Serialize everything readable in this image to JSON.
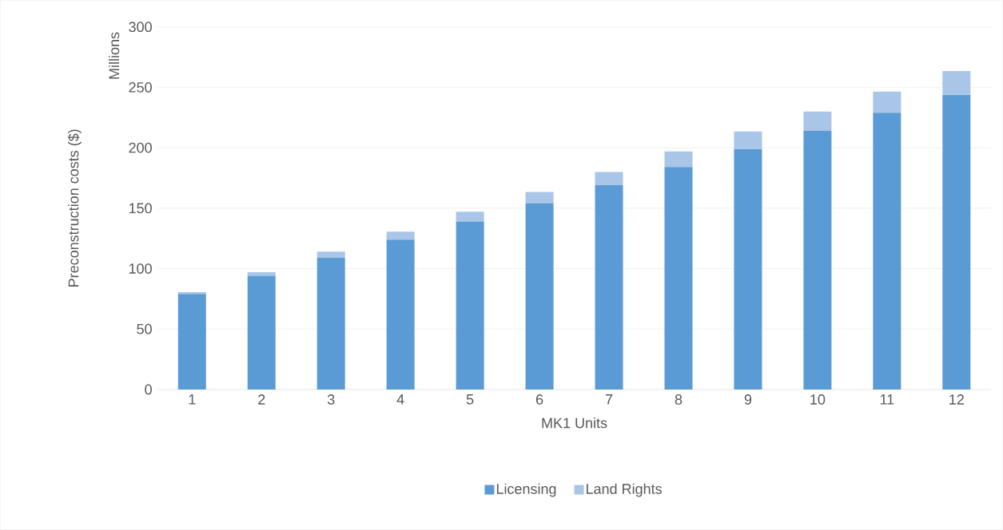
{
  "chart_data": {
    "type": "bar",
    "stacked": true,
    "xlabel": "MK1 Units",
    "ylabel": "Preconstruction costs ($)",
    "annotations": [
      "Millions"
    ],
    "categories": [
      "1",
      "2",
      "3",
      "4",
      "5",
      "6",
      "7",
      "8",
      "9",
      "10",
      "11",
      "12"
    ],
    "series": [
      {
        "name": "Licensing",
        "color": "#5b9bd5",
        "values": [
          79,
          94,
          109,
          124,
          139,
          154,
          169,
          184,
          199,
          214,
          229,
          244
        ]
      },
      {
        "name": "Land Rights",
        "color": "#a9c5e8",
        "values": [
          1.5,
          3,
          5,
          6.5,
          8,
          9.5,
          11,
          13,
          14.5,
          16,
          17.5,
          19.5
        ]
      }
    ],
    "ylim": [
      0,
      300
    ],
    "yticks": [
      0,
      50,
      100,
      150,
      200,
      250,
      300
    ],
    "grid": "y",
    "legend": "bottom"
  }
}
